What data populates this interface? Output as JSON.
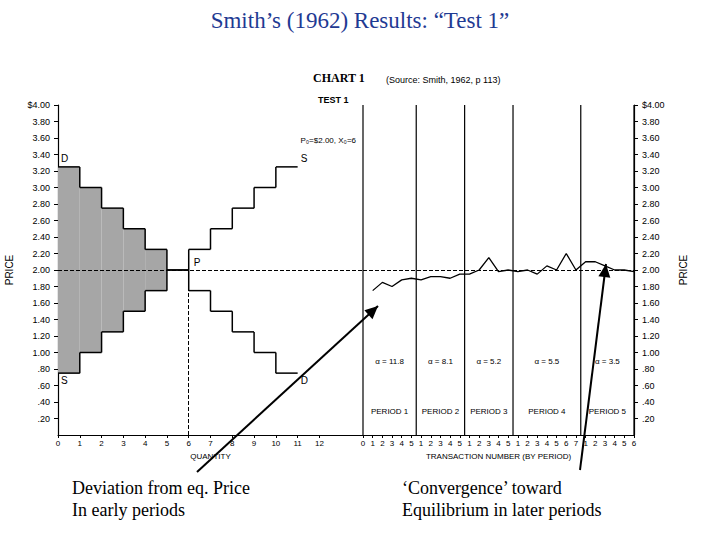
{
  "slide": {
    "title": "Smith’s (1962) Results: “Test 1”",
    "source": "(Source: Smith, 1962, p 113)",
    "annotations": [
      "Deviation from eq. Price\nIn early periods",
      "‘Convergence’ toward\nEquilibrium in later periods"
    ]
  },
  "chart_data": [
    {
      "type": "step",
      "title": "CHART 1",
      "subtitle": "TEST 1",
      "x_label": "QUANTITY",
      "y_label": "PRICE",
      "x": [
        1,
        2,
        3,
        4,
        5,
        6,
        7,
        8,
        9,
        10,
        11
      ],
      "series": [
        {
          "name": "D",
          "color": "#000000",
          "values": [
            3.25,
            3.0,
            2.75,
            2.5,
            2.25,
            2.0,
            1.75,
            1.5,
            1.25,
            1.0,
            0.75
          ]
        },
        {
          "name": "S",
          "color": "#000000",
          "values": [
            0.75,
            1.0,
            1.25,
            1.5,
            1.75,
            2.0,
            2.25,
            2.5,
            2.75,
            3.0,
            3.25
          ]
        }
      ],
      "equilibrium": {
        "price": 2.0,
        "quantity": 6,
        "label": "P₀=$2.00, X₀=6",
        "point_label": "P"
      },
      "xlim": [
        0,
        14
      ],
      "xticks": [
        0,
        1,
        2,
        3,
        4,
        5,
        6,
        7,
        8,
        9,
        10,
        11,
        12
      ],
      "ylim": [
        0,
        4
      ],
      "yticks": [
        {
          "value": 0.2,
          "label": ".20"
        },
        {
          "value": 0.4,
          "label": ".40"
        },
        {
          "value": 0.6,
          "label": ".60"
        },
        {
          "value": 0.8,
          "label": ".80"
        },
        {
          "value": 1.0,
          "label": "1.00"
        },
        {
          "value": 1.2,
          "label": "1.20"
        },
        {
          "value": 1.4,
          "label": "1.40"
        },
        {
          "value": 1.6,
          "label": "1.60"
        },
        {
          "value": 1.8,
          "label": "1.80"
        },
        {
          "value": 2.0,
          "label": "2.00"
        },
        {
          "value": 2.2,
          "label": "2.20"
        },
        {
          "value": 2.4,
          "label": "2.40"
        },
        {
          "value": 2.6,
          "label": "2.60"
        },
        {
          "value": 2.8,
          "label": "2.80"
        },
        {
          "value": 3.0,
          "label": "3.00"
        },
        {
          "value": 3.2,
          "label": "3.20"
        },
        {
          "value": 3.4,
          "label": "3.40"
        },
        {
          "value": 3.6,
          "label": "3.60"
        },
        {
          "value": 3.8,
          "label": "3.80"
        },
        {
          "value": 4.0,
          "label": "$4.00"
        }
      ],
      "grid": false
    },
    {
      "type": "line",
      "x_label": "TRANSACTION NUMBER (BY PERIOD)",
      "y_label": "PRICE",
      "categories": [
        "0",
        "1",
        "2",
        "3",
        "4",
        "5",
        "1",
        "2",
        "3",
        "4",
        "5",
        "1",
        "2",
        "3",
        "4",
        "5",
        "1",
        "2",
        "3",
        "4",
        "5",
        "6",
        "7",
        "1",
        "2",
        "3",
        "4",
        "5",
        "6"
      ],
      "values": [
        null,
        1.75,
        1.85,
        1.8,
        1.88,
        1.9,
        1.88,
        1.92,
        1.92,
        1.9,
        1.95,
        1.95,
        2.0,
        2.15,
        1.98,
        2.0,
        1.98,
        2.0,
        1.95,
        2.05,
        2.0,
        2.2,
        2.0,
        2.1,
        2.1,
        2.05,
        2.0,
        2.0,
        1.98
      ],
      "color": "#000000",
      "periods": [
        {
          "label": "PERIOD 1",
          "alpha": "α = 11.8"
        },
        {
          "label": "PERIOD 2",
          "alpha": "α = 8.1"
        },
        {
          "label": "PERIOD 3",
          "alpha": "α = 5.2"
        },
        {
          "label": "PERIOD 4",
          "alpha": "α = 5.5"
        },
        {
          "label": "PERIOD 5",
          "alpha": "α = 3.5"
        }
      ],
      "ylim": [
        0,
        4
      ],
      "yticks": [
        {
          "value": 0.2,
          "label": ".20"
        },
        {
          "value": 0.4,
          "label": ".40"
        },
        {
          "value": 0.6,
          "label": ".60"
        },
        {
          "value": 0.8,
          "label": ".80"
        },
        {
          "value": 1.0,
          "label": "1.00"
        },
        {
          "value": 1.2,
          "label": "1.20"
        },
        {
          "value": 1.4,
          "label": "1.40"
        },
        {
          "value": 1.6,
          "label": "1.60"
        },
        {
          "value": 1.8,
          "label": "1.80"
        },
        {
          "value": 2.0,
          "label": "2.00"
        },
        {
          "value": 2.2,
          "label": "2.20"
        },
        {
          "value": 2.4,
          "label": "2.40"
        },
        {
          "value": 2.6,
          "label": "2.60"
        },
        {
          "value": 2.8,
          "label": "2.80"
        },
        {
          "value": 3.0,
          "label": "3.00"
        },
        {
          "value": 3.2,
          "label": "3.20"
        },
        {
          "value": 3.4,
          "label": "3.40"
        },
        {
          "value": 3.6,
          "label": "3.60"
        },
        {
          "value": 3.8,
          "label": "3.80"
        },
        {
          "value": 4.0,
          "label": "$4.00"
        }
      ],
      "grid": false
    }
  ]
}
